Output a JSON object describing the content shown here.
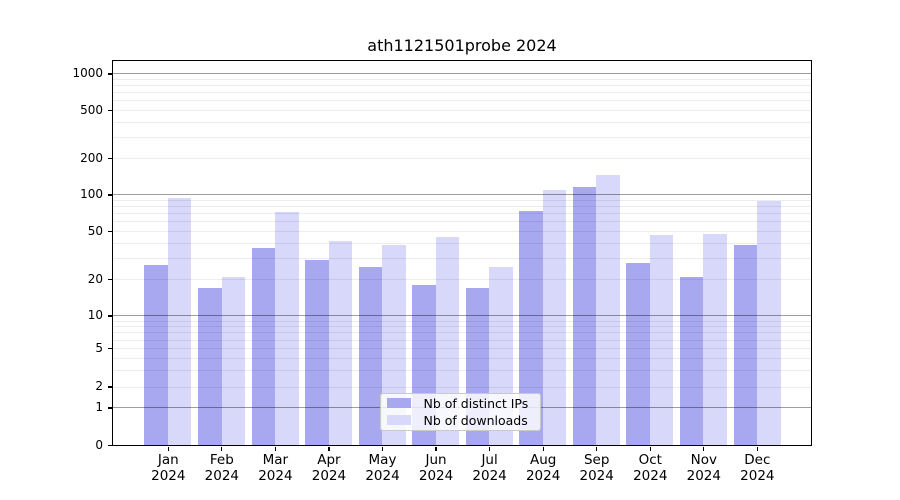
{
  "title": "ath1121501probe 2024",
  "chart_data": {
    "type": "bar",
    "title": "ath1121501probe 2024",
    "categories": [
      "Jan",
      "Feb",
      "Mar",
      "Apr",
      "May",
      "Jun",
      "Jul",
      "Aug",
      "Sep",
      "Oct",
      "Nov",
      "Dec"
    ],
    "category_year": "2024",
    "series": [
      {
        "name": "Nb of distinct IPs",
        "color": "#a8a8f1",
        "values": [
          26,
          17,
          36,
          29,
          25,
          18,
          17,
          73,
          115,
          27,
          21,
          38
        ]
      },
      {
        "name": "Nb of downloads",
        "color": "#d8d8fa",
        "values": [
          94,
          21,
          72,
          41,
          38,
          45,
          25,
          110,
          145,
          46,
          47,
          88
        ]
      }
    ],
    "y_ticks": [
      1000,
      500,
      200,
      100,
      50,
      20,
      10,
      5,
      2,
      1,
      0
    ],
    "y_scale": "log-with-zero",
    "ylim": [
      0,
      1400
    ],
    "grid": true,
    "legend_position": "inside-bottom-center",
    "axis_color": "#000000",
    "major_grid_color": "#9e9e9e",
    "minor_grid_color": "#ececec",
    "bar_colors": {
      "distinct_ips": "#a8a8f1",
      "downloads": "#d8d8fa"
    }
  },
  "legend": {
    "items": [
      {
        "label": "Nb of distinct IPs"
      },
      {
        "label": "Nb of downloads"
      }
    ]
  }
}
